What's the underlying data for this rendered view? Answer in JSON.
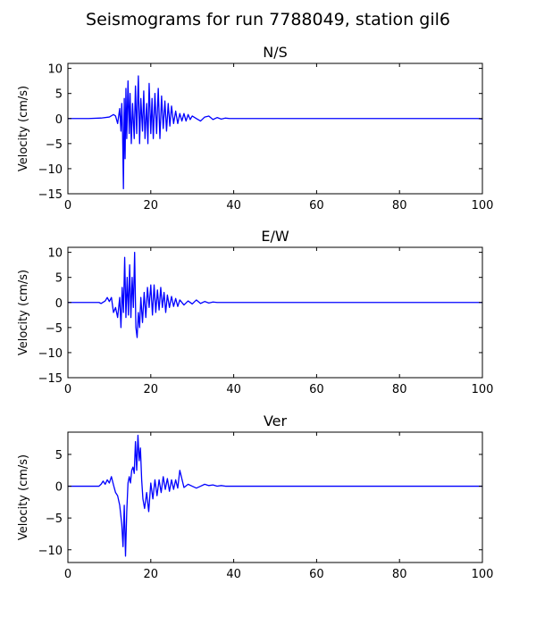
{
  "figure": {
    "title": "Seismograms for run 7788049, station gil6"
  },
  "colors": {
    "trace": "#0000ff",
    "axes": "#000000",
    "background": "#ffffff"
  },
  "chart_data": [
    {
      "type": "line",
      "title": "N/S",
      "xlabel": "",
      "ylabel": "Velocity (cm/s)",
      "xlim": [
        0,
        100
      ],
      "ylim": [
        -15,
        11
      ],
      "xticks": [
        0,
        20,
        40,
        60,
        80,
        100
      ],
      "yticks": [
        -15,
        -10,
        -5,
        0,
        5,
        10
      ],
      "grid": false,
      "series": [
        {
          "x": [
            0,
            5,
            8,
            10,
            11,
            11.5,
            12,
            12.5,
            12.8,
            13,
            13.2,
            13.4,
            13.6,
            13.8,
            14,
            14.2,
            14.5,
            14.8,
            15,
            15.3,
            15.6,
            16,
            16.3,
            16.6,
            17,
            17.3,
            17.6,
            18,
            18.3,
            18.6,
            19,
            19.3,
            19.6,
            20,
            20.3,
            20.6,
            21,
            21.4,
            21.8,
            22.2,
            22.6,
            23,
            23.4,
            23.8,
            24.2,
            24.6,
            25,
            25.5,
            26,
            26.5,
            27,
            27.5,
            28,
            28.5,
            29,
            29.5,
            30,
            31,
            32,
            33,
            34,
            35,
            36,
            37,
            38,
            39,
            40,
            45,
            50,
            60,
            70,
            80,
            90,
            99,
            100
          ],
          "values": [
            0,
            0,
            0.1,
            0.3,
            0.8,
            0.5,
            -1.0,
            2.0,
            -2.5,
            3.0,
            -3.0,
            -14.0,
            4.0,
            -8.0,
            6.0,
            -4.0,
            7.5,
            -3.0,
            5.0,
            -5.0,
            3.0,
            -4.0,
            6.5,
            -3.0,
            8.5,
            -5.0,
            4.0,
            -2.5,
            5.5,
            -4.0,
            3.0,
            -5.0,
            7.0,
            -3.0,
            4.0,
            -4.0,
            5.0,
            -3.0,
            6.0,
            -4.0,
            4.5,
            -2.0,
            3.5,
            -2.5,
            3.0,
            -1.5,
            2.5,
            -1.0,
            1.5,
            -1.0,
            1.0,
            -0.5,
            1.0,
            -0.5,
            0.8,
            -0.2,
            0.5,
            0.0,
            -0.5,
            0.3,
            0.5,
            -0.2,
            0.2,
            -0.1,
            0.1,
            0.0,
            0.0,
            0.0,
            0.0,
            0.0,
            0.0,
            0.0,
            0.0,
            0.0,
            -0.1
          ]
        }
      ]
    },
    {
      "type": "line",
      "title": "E/W",
      "xlabel": "",
      "ylabel": "Velocity (cm/s)",
      "xlim": [
        0,
        100
      ],
      "ylim": [
        -15,
        11
      ],
      "xticks": [
        0,
        20,
        40,
        60,
        80,
        100
      ],
      "yticks": [
        -15,
        -10,
        -5,
        0,
        5,
        10
      ],
      "grid": false,
      "series": [
        {
          "x": [
            0,
            5,
            7.5,
            8,
            9,
            9.5,
            10,
            10.5,
            11,
            11.5,
            12,
            12.5,
            12.8,
            13.1,
            13.4,
            13.7,
            14,
            14.3,
            14.6,
            14.9,
            15.2,
            15.5,
            15.8,
            16.1,
            16.4,
            16.7,
            17,
            17.3,
            17.6,
            18,
            18.4,
            18.8,
            19.2,
            19.6,
            20,
            20.4,
            20.8,
            21.2,
            21.6,
            22,
            22.4,
            22.8,
            23.2,
            23.6,
            24,
            24.5,
            25,
            25.5,
            26,
            26.5,
            27,
            28,
            29,
            30,
            31,
            32,
            33,
            34,
            35,
            36,
            38,
            40,
            45,
            50,
            60,
            70,
            80,
            90,
            100
          ],
          "values": [
            0,
            0,
            0,
            -0.2,
            0.3,
            1.0,
            0.2,
            1.0,
            -2.0,
            -1.0,
            -3.0,
            1.0,
            -5.0,
            3.0,
            -2.0,
            9.0,
            -3.0,
            5.0,
            -2.5,
            7.5,
            -3.0,
            5.0,
            -1.0,
            10.0,
            -5.0,
            -7.0,
            -2.0,
            -5.0,
            1.0,
            -4.0,
            2.0,
            -3.0,
            3.0,
            -1.0,
            3.5,
            -2.5,
            3.5,
            -2.0,
            2.5,
            -1.5,
            3.0,
            -1.0,
            2.0,
            -2.0,
            1.5,
            -1.0,
            1.2,
            -0.8,
            0.8,
            -0.8,
            0.5,
            -0.5,
            0.3,
            -0.3,
            0.5,
            -0.2,
            0.2,
            -0.1,
            0.1,
            0.0,
            0.0,
            0.0,
            0.0,
            0.0,
            0.0,
            0.0,
            0.0,
            0.0,
            0.0
          ]
        }
      ]
    },
    {
      "type": "line",
      "title": "Ver",
      "xlabel": "",
      "ylabel": "Velocity (cm/s)",
      "xlim": [
        0,
        100
      ],
      "ylim": [
        -12,
        8.5
      ],
      "xticks": [
        0,
        20,
        40,
        60,
        80,
        100
      ],
      "yticks": [
        -10,
        -5,
        0,
        5
      ],
      "grid": false,
      "series": [
        {
          "x": [
            0,
            5,
            7.5,
            8,
            8.5,
            9,
            9.5,
            10,
            10.5,
            11,
            11.5,
            12,
            12.5,
            13,
            13.3,
            13.6,
            13.9,
            14.2,
            14.5,
            14.8,
            15.1,
            15.4,
            15.7,
            16,
            16.3,
            16.6,
            16.9,
            17.2,
            17.5,
            17.8,
            18.1,
            18.5,
            19,
            19.5,
            20,
            20.5,
            21,
            21.5,
            22,
            22.5,
            23,
            23.5,
            24,
            24.5,
            25,
            25.5,
            26,
            26.5,
            27,
            28,
            29,
            30,
            31,
            32,
            33,
            34,
            35,
            36,
            37,
            38,
            40,
            45,
            50,
            60,
            70,
            80,
            90,
            100
          ],
          "values": [
            0,
            0,
            0,
            0.3,
            0.8,
            0.3,
            1.0,
            0.5,
            1.5,
            0.2,
            -1.0,
            -1.5,
            -3.0,
            -6.0,
            -9.5,
            -3.0,
            -11.0,
            -4.0,
            0.5,
            1.5,
            0.5,
            2.5,
            3.0,
            2.0,
            7.0,
            2.5,
            8.0,
            4.0,
            6.0,
            1.0,
            -2.0,
            -3.5,
            -1.0,
            -4.0,
            0.5,
            -2.0,
            1.0,
            -1.5,
            1.0,
            -1.0,
            1.5,
            -0.5,
            1.2,
            -0.8,
            1.0,
            -0.5,
            1.0,
            -0.3,
            2.5,
            -0.2,
            0.3,
            0.0,
            -0.3,
            0.0,
            0.3,
            0.1,
            0.2,
            0.0,
            0.1,
            0.0,
            0.0,
            0.0,
            0.0,
            0.0,
            0.0,
            0.0,
            0.0,
            0.0
          ]
        }
      ]
    }
  ]
}
